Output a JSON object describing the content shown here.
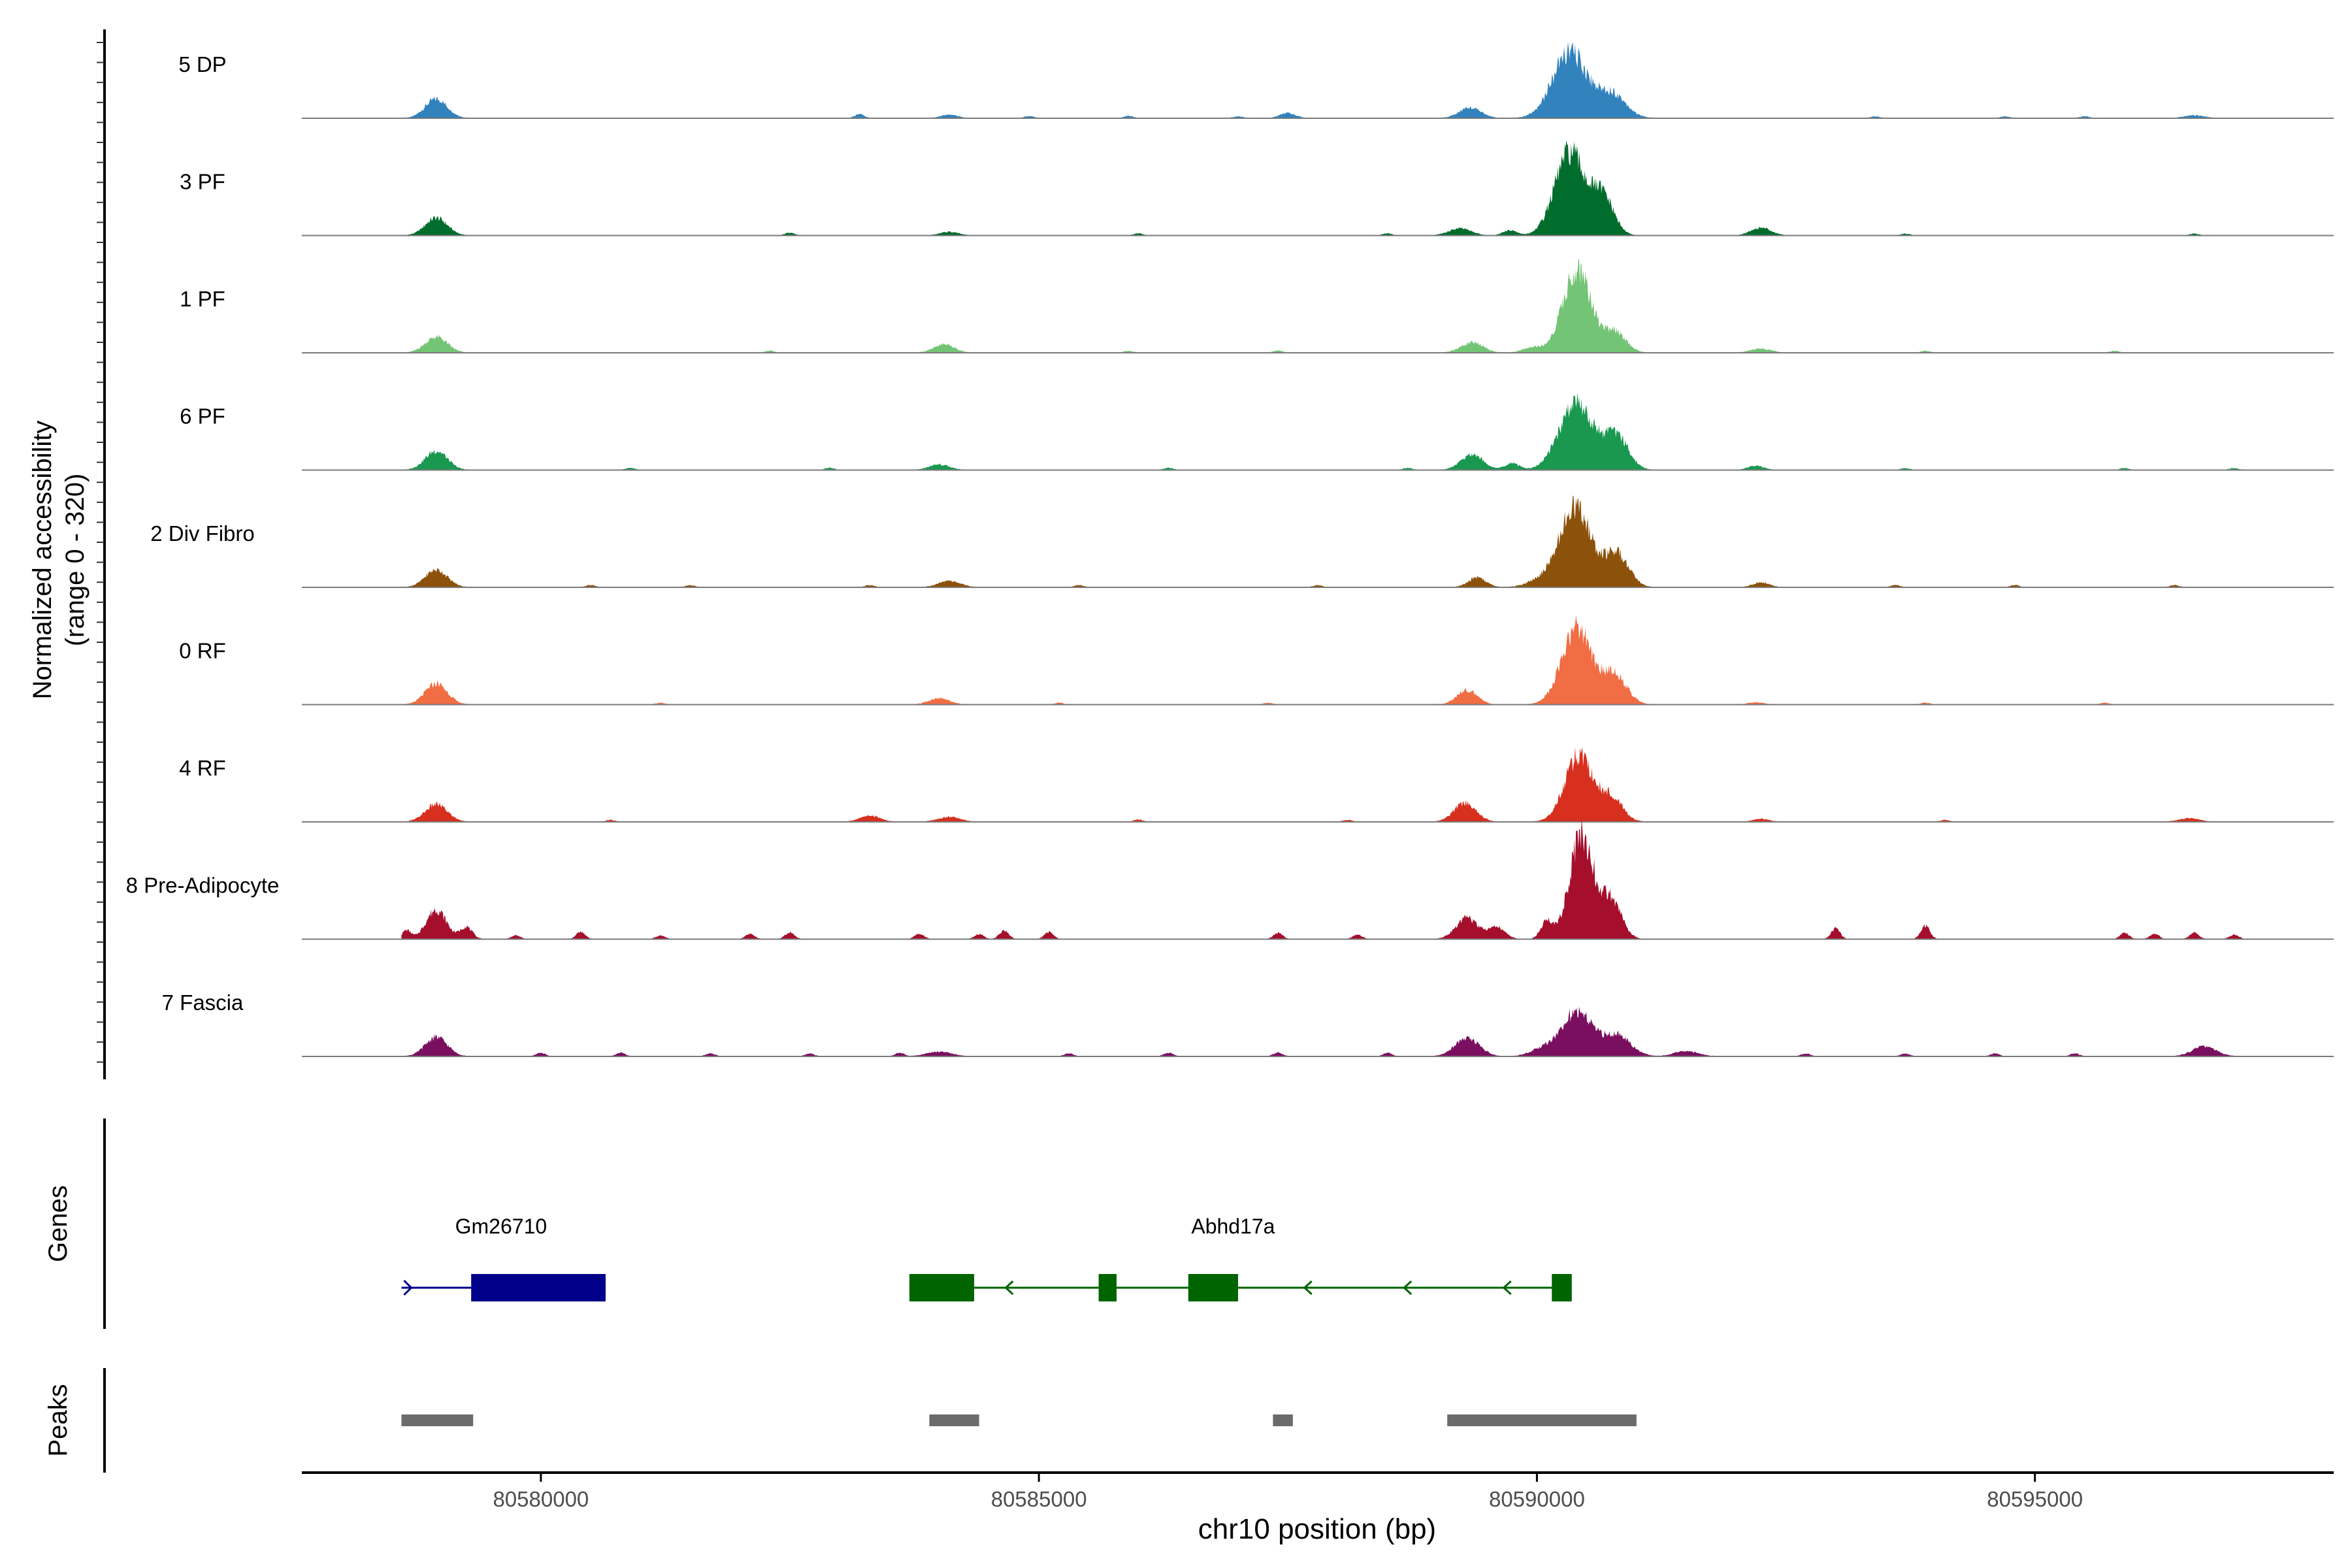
{
  "chart_data": {
    "type": "area",
    "title": "",
    "region": "chr10",
    "xlabel": "chr10 position (bp)",
    "ylabel_line1": "Normalized accessibility",
    "ylabel_line2": "(range 0 - 320)",
    "ylim": [
      0,
      320
    ],
    "xlim": [
      80577600,
      80598000
    ],
    "xticks": [
      80580000,
      80585000,
      80590000,
      80595000
    ],
    "xtick_labels": [
      "80580000",
      "80585000",
      "80590000",
      "80595000"
    ],
    "tracks": [
      {
        "name": "5 DP",
        "color": "#3182bd",
        "peaks": [
          [
            80578950,
            55,
            110
          ],
          [
            80584100,
            10,
            80
          ],
          [
            80587500,
            14,
            80
          ],
          [
            80589330,
            30,
            110
          ],
          [
            80590330,
            190,
            170
          ],
          [
            80590750,
            70,
            140
          ],
          [
            80596600,
            8,
            100
          ]
        ],
        "spikes": [
          [
            80583200,
            12
          ],
          [
            80584900,
            6
          ],
          [
            80585900,
            6
          ],
          [
            80587000,
            5
          ],
          [
            80593400,
            5
          ],
          [
            80594700,
            5
          ],
          [
            80595500,
            5
          ]
        ]
      },
      {
        "name": "3 PF",
        "color": "#006d2c",
        "peaks": [
          [
            80578950,
            50,
            110
          ],
          [
            80584100,
            10,
            90
          ],
          [
            80589230,
            20,
            110
          ],
          [
            80589730,
            14,
            70
          ],
          [
            80590330,
            240,
            150
          ],
          [
            80590660,
            110,
            110
          ],
          [
            80592250,
            22,
            100
          ]
        ],
        "spikes": [
          [
            80582500,
            8
          ],
          [
            80586000,
            6
          ],
          [
            80588500,
            6
          ],
          [
            80593700,
            5
          ],
          [
            80596600,
            5
          ]
        ]
      },
      {
        "name": "1 PF",
        "color": "#74c476",
        "peaks": [
          [
            80578950,
            45,
            110
          ],
          [
            80584050,
            25,
            100
          ],
          [
            80589350,
            30,
            110
          ],
          [
            80589960,
            15,
            100
          ],
          [
            80590400,
            240,
            140
          ],
          [
            80590780,
            60,
            110
          ],
          [
            80592250,
            12,
            100
          ]
        ],
        "spikes": [
          [
            80582300,
            6
          ],
          [
            80585900,
            5
          ],
          [
            80587400,
            6
          ],
          [
            80593900,
            5
          ],
          [
            80595800,
            5
          ]
        ]
      },
      {
        "name": "6 PF",
        "color": "#1a9850",
        "peaks": [
          [
            80578950,
            55,
            110
          ],
          [
            80584000,
            16,
            100
          ],
          [
            80589350,
            45,
            110
          ],
          [
            80589750,
            20,
            70
          ],
          [
            80590400,
            195,
            170
          ],
          [
            80590800,
            95,
            120
          ],
          [
            80592200,
            12,
            80
          ]
        ],
        "spikes": [
          [
            80580900,
            6
          ],
          [
            80582900,
            6
          ],
          [
            80586300,
            6
          ],
          [
            80588700,
            6
          ],
          [
            80593700,
            5
          ],
          [
            80595900,
            5
          ],
          [
            80597000,
            5
          ]
        ]
      },
      {
        "name": "2 Div Fibro",
        "color": "#8c510a",
        "peaks": [
          [
            80578950,
            50,
            110
          ],
          [
            80584100,
            18,
            110
          ],
          [
            80589400,
            28,
            90
          ],
          [
            80590000,
            15,
            120
          ],
          [
            80590380,
            230,
            160
          ],
          [
            80590800,
            95,
            120
          ],
          [
            80592250,
            14,
            80
          ]
        ],
        "spikes": [
          [
            80580500,
            6
          ],
          [
            80581500,
            6
          ],
          [
            80583300,
            6
          ],
          [
            80585400,
            6
          ],
          [
            80587800,
            6
          ],
          [
            80593600,
            6
          ],
          [
            80594800,
            6
          ],
          [
            80596400,
            6
          ]
        ]
      },
      {
        "name": "0 RF",
        "color": "#f16d43",
        "peaks": [
          [
            80578950,
            60,
            110
          ],
          [
            80584000,
            18,
            100
          ],
          [
            80589300,
            42,
            100
          ],
          [
            80590400,
            220,
            150
          ],
          [
            80590780,
            85,
            120
          ],
          [
            80592200,
            6,
            80
          ]
        ],
        "spikes": [
          [
            80581200,
            5
          ],
          [
            80585200,
            5
          ],
          [
            80587300,
            5
          ],
          [
            80593900,
            5
          ],
          [
            80595700,
            5
          ]
        ]
      },
      {
        "name": "4 RF",
        "color": "#d7301f",
        "peaks": [
          [
            80578950,
            50,
            110
          ],
          [
            80583300,
            18,
            100
          ],
          [
            80584100,
            14,
            110
          ],
          [
            80589280,
            55,
            110
          ],
          [
            80590420,
            190,
            140
          ],
          [
            80590750,
            70,
            110
          ],
          [
            80592250,
            8,
            80
          ],
          [
            80596550,
            10,
            100
          ]
        ],
        "spikes": [
          [
            80580700,
            5
          ],
          [
            80586000,
            6
          ],
          [
            80588100,
            5
          ],
          [
            80594100,
            5
          ]
        ]
      },
      {
        "name": "8 Pre-Adipocyte",
        "color": "#a50f2c",
        "peaks": [
          [
            80578950,
            85,
            100
          ],
          [
            80579250,
            35,
            60
          ],
          [
            80589300,
            60,
            110
          ],
          [
            80589600,
            35,
            80
          ],
          [
            80590100,
            50,
            60
          ],
          [
            80590450,
            300,
            120
          ],
          [
            80590750,
            110,
            100
          ]
        ],
        "spikes": [
          [
            80578650,
            25
          ],
          [
            80579750,
            10
          ],
          [
            80580400,
            20
          ],
          [
            80581200,
            10
          ],
          [
            80582100,
            15
          ],
          [
            80582500,
            20
          ],
          [
            80583800,
            15
          ],
          [
            80584400,
            15
          ],
          [
            80584650,
            25
          ],
          [
            80585100,
            20
          ],
          [
            80587400,
            18
          ],
          [
            80588200,
            12
          ],
          [
            80593000,
            30
          ],
          [
            80593900,
            38
          ],
          [
            80595900,
            18
          ],
          [
            80596200,
            15
          ],
          [
            80596600,
            18
          ],
          [
            80597000,
            12
          ]
        ]
      },
      {
        "name": "7 Fascia",
        "color": "#7a0f5f",
        "peaks": [
          [
            80578950,
            55,
            110
          ],
          [
            80584000,
            14,
            120
          ],
          [
            80589300,
            55,
            120
          ],
          [
            80590050,
            20,
            120
          ],
          [
            80590400,
            130,
            150
          ],
          [
            80590800,
            60,
            140
          ],
          [
            80591500,
            15,
            120
          ],
          [
            80596700,
            28,
            120
          ]
        ],
        "spikes": [
          [
            80580000,
            10
          ],
          [
            80580800,
            10
          ],
          [
            80581700,
            8
          ],
          [
            80582700,
            8
          ],
          [
            80583600,
            10
          ],
          [
            80585300,
            8
          ],
          [
            80586300,
            10
          ],
          [
            80587400,
            10
          ],
          [
            80588500,
            10
          ],
          [
            80592700,
            8
          ],
          [
            80593700,
            8
          ],
          [
            80594600,
            8
          ],
          [
            80595400,
            8
          ]
        ]
      }
    ],
    "genes_label": "Genes",
    "genes": [
      {
        "name": "Gm26710",
        "strand": "+",
        "color": "#00008b",
        "start": 80578600,
        "end": 80580650,
        "exons": [
          [
            80579300,
            80580650
          ]
        ],
        "label_pos": 80579600
      },
      {
        "name": "Abhd17a",
        "strand": "-",
        "color": "#006400",
        "start": 80583700,
        "end": 80590350,
        "exons": [
          [
            80583700,
            80584350
          ],
          [
            80585600,
            80585780
          ],
          [
            80586500,
            80587000
          ],
          [
            80590150,
            80590350
          ]
        ],
        "label_pos": 80586950,
        "arrows": [
          80584700,
          80587700,
          80588700,
          80589700
        ]
      }
    ],
    "peaks_label": "Peaks",
    "peak_regions": [
      [
        80578600,
        80579320
      ],
      [
        80583900,
        80584400
      ],
      [
        80587350,
        80587550
      ],
      [
        80589100,
        80591000
      ]
    ]
  }
}
